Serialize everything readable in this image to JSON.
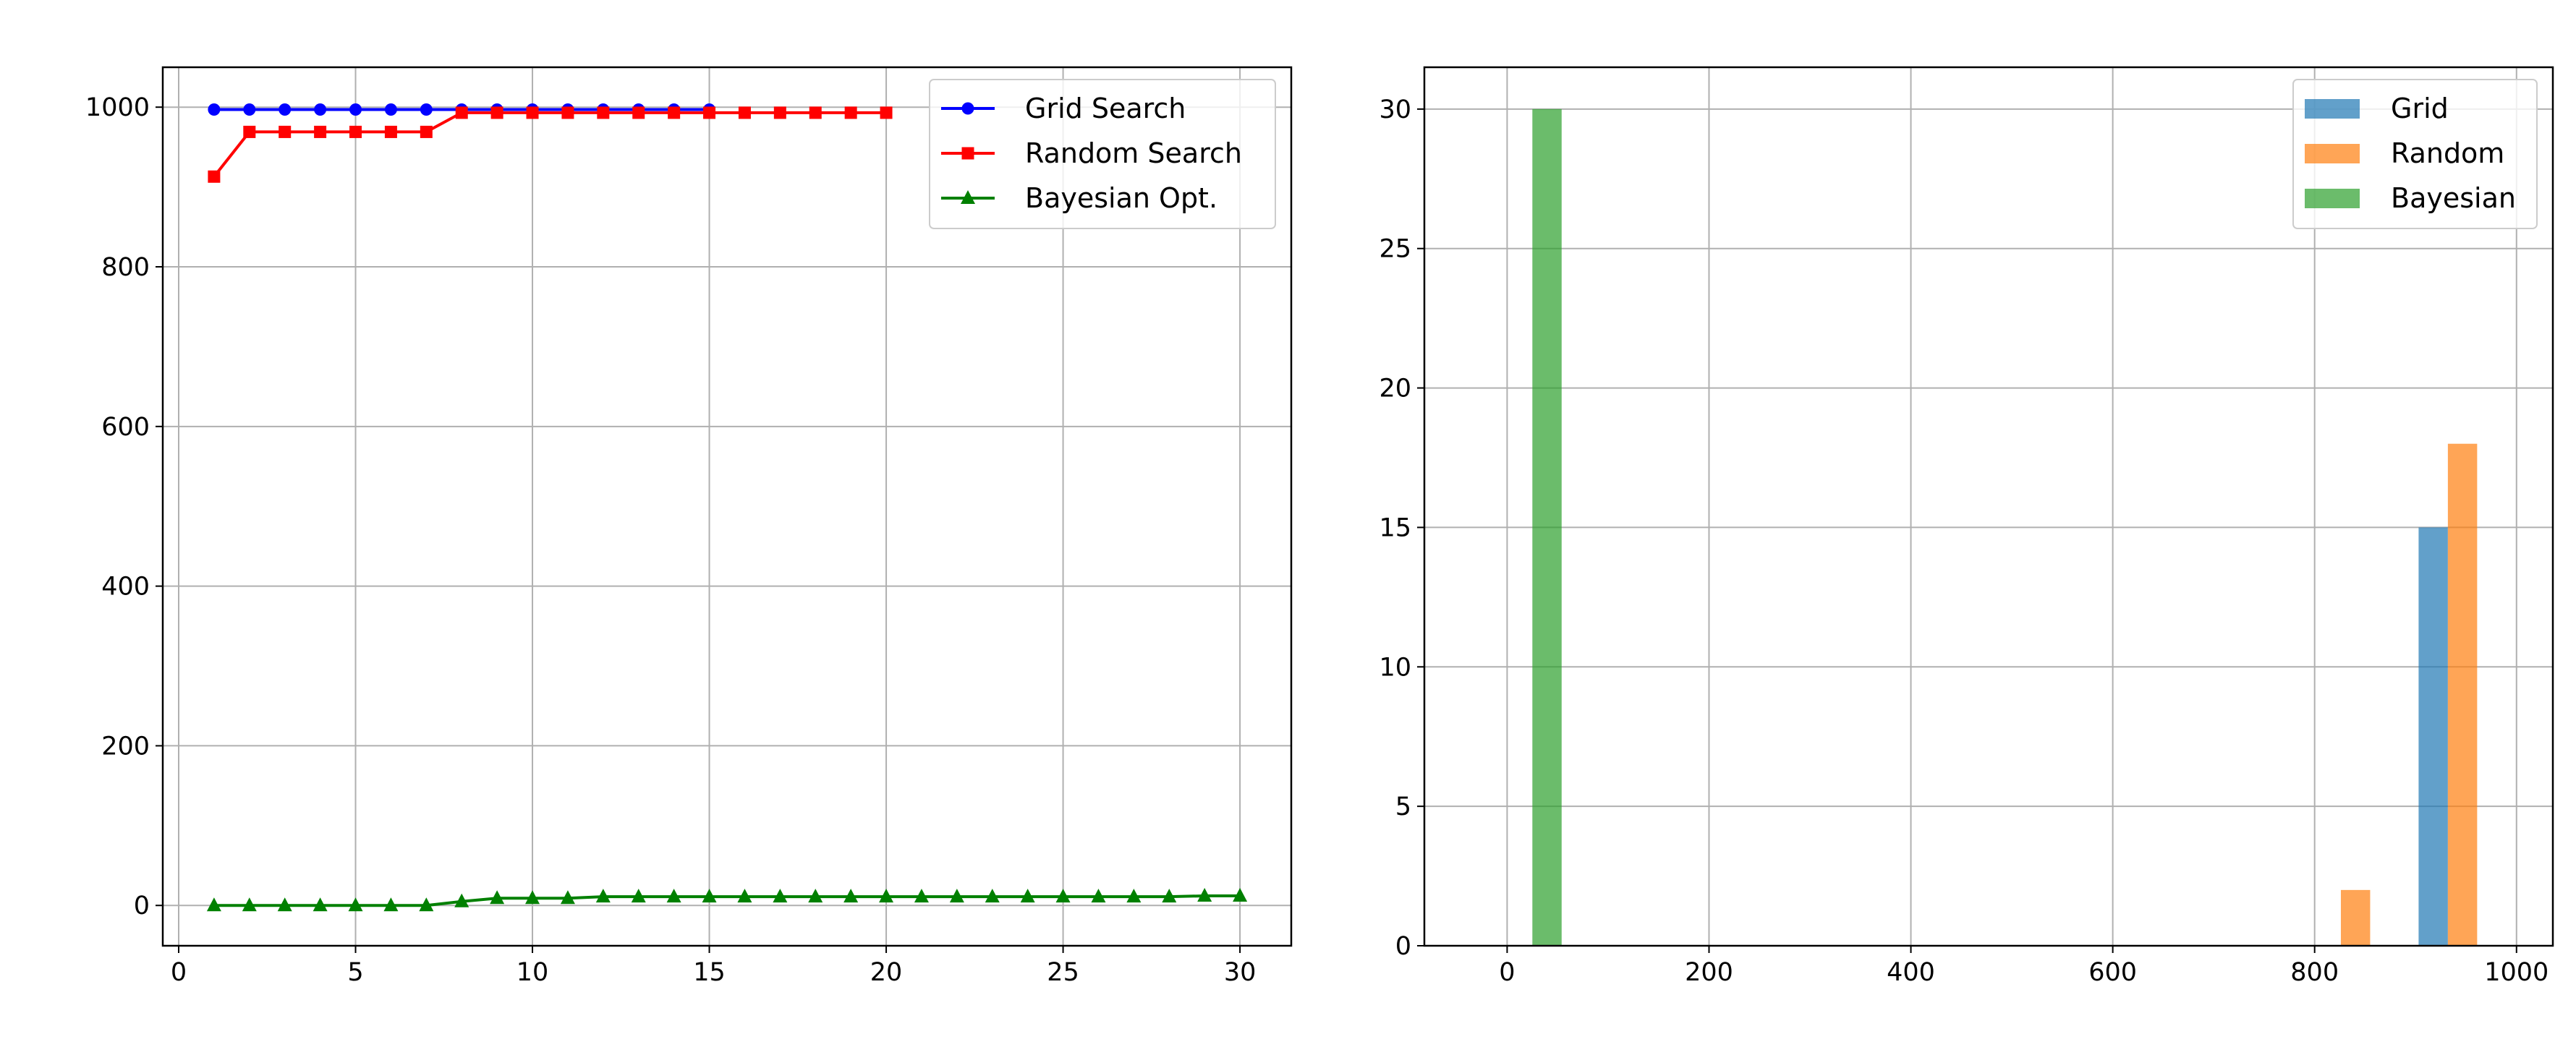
{
  "chart_data": [
    {
      "type": "line",
      "title": "",
      "xlabel": "",
      "ylabel": "",
      "xlim": [
        -0.45,
        31.45
      ],
      "ylim": [
        -50.5,
        1050
      ],
      "xticks": [
        0,
        5,
        10,
        15,
        20,
        25,
        30
      ],
      "yticks": [
        0,
        200,
        400,
        600,
        800,
        1000
      ],
      "grid": true,
      "legend_position": "top-right",
      "series": [
        {
          "name": "Grid Search",
          "color": "#0000ff",
          "marker": "circle",
          "x": [
            1,
            2,
            3,
            4,
            5,
            6,
            7,
            8,
            9,
            10,
            11,
            12,
            13,
            14,
            15
          ],
          "values": [
            997,
            997,
            997,
            997,
            997,
            997,
            997,
            997,
            997,
            997,
            997,
            997,
            997,
            997,
            997
          ]
        },
        {
          "name": "Random Search",
          "color": "#ff0000",
          "marker": "square",
          "x": [
            1,
            2,
            3,
            4,
            5,
            6,
            7,
            8,
            9,
            10,
            11,
            12,
            13,
            14,
            15,
            16,
            17,
            18,
            19,
            20
          ],
          "values": [
            913,
            969,
            969,
            969,
            969,
            969,
            969,
            993,
            993,
            993,
            993,
            993,
            993,
            993,
            993,
            993,
            993,
            993,
            993,
            993
          ]
        },
        {
          "name": "Bayesian Opt.",
          "color": "#008000",
          "marker": "triangle",
          "x": [
            1,
            2,
            3,
            4,
            5,
            6,
            7,
            8,
            9,
            10,
            11,
            12,
            13,
            14,
            15,
            16,
            17,
            18,
            19,
            20,
            21,
            22,
            23,
            24,
            25,
            26,
            27,
            28,
            29,
            30
          ],
          "values": [
            0,
            0,
            0,
            0,
            0,
            0,
            0,
            5,
            9,
            9,
            9,
            11,
            11,
            11,
            11,
            11,
            11,
            11,
            11,
            11,
            11,
            11,
            11,
            11,
            11,
            11,
            11,
            11,
            12,
            12
          ]
        }
      ]
    },
    {
      "type": "bar",
      "title": "",
      "xlabel": "",
      "ylabel": "",
      "xlim": [
        -82,
        1036
      ],
      "ylim": [
        0,
        31.5
      ],
      "xticks": [
        0,
        200,
        400,
        600,
        800,
        1000
      ],
      "yticks": [
        0,
        5,
        10,
        15,
        20,
        25,
        30
      ],
      "grid": true,
      "legend_position": "top-right",
      "series": [
        {
          "name": "Grid",
          "color": "#1f77b4",
          "opacity": 0.7,
          "bins": [
            [
              903,
              932,
              15
            ]
          ]
        },
        {
          "name": "Random",
          "color": "#ff7f0e",
          "opacity": 0.7,
          "bins": [
            [
              826,
              855,
              2
            ],
            [
              932,
              961,
              18
            ]
          ]
        },
        {
          "name": "Bayesian",
          "color": "#2ca02c",
          "opacity": 0.7,
          "bins": [
            [
              25,
              54,
              30
            ]
          ]
        }
      ]
    }
  ]
}
